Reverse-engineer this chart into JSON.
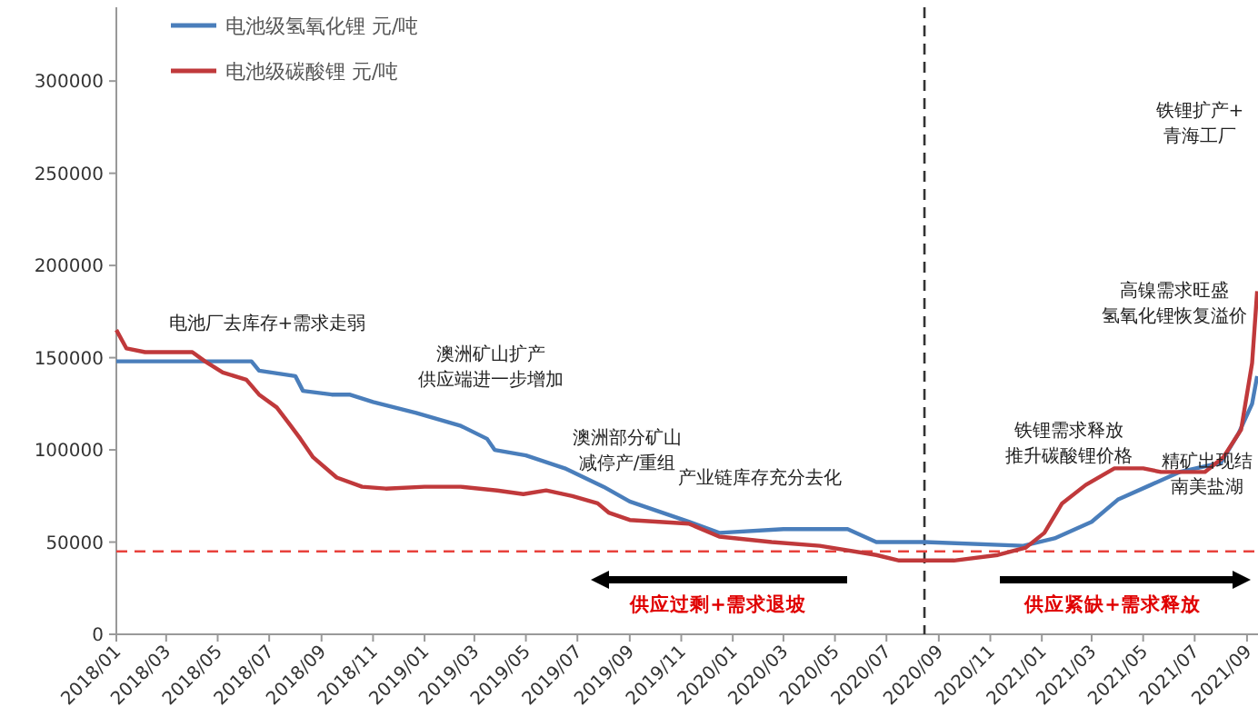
{
  "chart_data": {
    "type": "line",
    "legend": "top left",
    "xlim": [
      "2018-01-01",
      "2021-09-14"
    ],
    "ylim": [
      0,
      340000
    ],
    "xticks": [
      {
        "value": "2018-01-01",
        "label": "2018/01"
      },
      {
        "value": "2018-03-01",
        "label": "2018/03"
      },
      {
        "value": "2018-05-01",
        "label": "2018/05"
      },
      {
        "value": "2018-07-01",
        "label": "2018/07"
      },
      {
        "value": "2018-09-01",
        "label": "2018/09"
      },
      {
        "value": "2018-11-01",
        "label": "2018/11"
      },
      {
        "value": "2019-01-01",
        "label": "2019/01"
      },
      {
        "value": "2019-03-01",
        "label": "2019/03"
      },
      {
        "value": "2019-05-01",
        "label": "2019/05"
      },
      {
        "value": "2019-07-01",
        "label": "2019/07"
      },
      {
        "value": "2019-09-01",
        "label": "2019/09"
      },
      {
        "value": "2019-11-01",
        "label": "2019/11"
      },
      {
        "value": "2020-01-01",
        "label": "2020/01"
      },
      {
        "value": "2020-03-01",
        "label": "2020/03"
      },
      {
        "value": "2020-05-01",
        "label": "2020/05"
      },
      {
        "value": "2020-07-01",
        "label": "2020/07"
      },
      {
        "value": "2020-09-01",
        "label": "2020/09"
      },
      {
        "value": "2020-11-01",
        "label": "2020/11"
      },
      {
        "value": "2021-01-01",
        "label": "2021/01"
      },
      {
        "value": "2021-03-01",
        "label": "2021/03"
      },
      {
        "value": "2021-05-01",
        "label": "2021/05"
      },
      {
        "value": "2021-07-01",
        "label": "2021/07"
      },
      {
        "value": "2021-09-01",
        "label": "2021/09"
      }
    ],
    "yticks": [
      0,
      50000,
      100000,
      150000,
      200000,
      250000,
      300000
    ],
    "series": [
      {
        "name": "电池级氢氧化锂 元/吨",
        "color": "#4a7ebb",
        "x": [
          "2018-01-01",
          "2018-06-10",
          "2018-06-19",
          "2018-08-01",
          "2018-08-10",
          "2018-09-13",
          "2018-10-04",
          "2018-11-01",
          "2018-12-22",
          "2019-02-13",
          "2019-03-16",
          "2019-03-25",
          "2019-05-01",
          "2019-06-16",
          "2019-08-01",
          "2019-09-01",
          "2019-11-10",
          "2019-12-16",
          "2020-03-01",
          "2020-05-16",
          "2020-06-19",
          "2020-08-16",
          "2020-12-10",
          "2021-01-16",
          "2021-03-01",
          "2021-04-01",
          "2021-05-10",
          "2021-06-13",
          "2021-08-01",
          "2021-08-22",
          "2021-09-07",
          "2021-09-13"
        ],
        "values": [
          148000,
          148000,
          143000,
          140000,
          132000,
          130000,
          130000,
          126000,
          120000,
          113000,
          106000,
          100000,
          97000,
          90000,
          80000,
          72000,
          61000,
          55000,
          57000,
          57000,
          50000,
          50000,
          48000,
          52000,
          61000,
          73000,
          81000,
          88000,
          93000,
          109000,
          125000,
          140000
        ]
      },
      {
        "name": "电池级碳酸锂 元/吨",
        "color": "#c0393b",
        "x": [
          "2018-01-01",
          "2018-01-13",
          "2018-02-04",
          "2018-04-01",
          "2018-04-16",
          "2018-05-07",
          "2018-06-04",
          "2018-06-19",
          "2018-07-10",
          "2018-07-25",
          "2018-08-07",
          "2018-08-22",
          "2018-09-19",
          "2018-10-19",
          "2018-11-16",
          "2019-01-01",
          "2019-02-13",
          "2019-03-28",
          "2019-04-28",
          "2019-05-25",
          "2019-06-25",
          "2019-07-25",
          "2019-08-07",
          "2019-09-01",
          "2019-11-10",
          "2019-12-16",
          "2020-02-16",
          "2020-04-13",
          "2020-06-19",
          "2020-07-16",
          "2020-09-19",
          "2020-11-10",
          "2020-12-13",
          "2021-01-04",
          "2021-01-25",
          "2021-02-22",
          "2021-03-28",
          "2021-05-01",
          "2021-05-22",
          "2021-07-13",
          "2021-08-04",
          "2021-08-25",
          "2021-09-07",
          "2021-09-13"
        ],
        "values": [
          165000,
          155000,
          153000,
          153000,
          148000,
          142000,
          138000,
          130000,
          123000,
          114000,
          106000,
          96000,
          85000,
          80000,
          79000,
          80000,
          80000,
          78000,
          76000,
          78000,
          75000,
          71000,
          66000,
          62000,
          60000,
          53000,
          50000,
          48000,
          43000,
          40000,
          40000,
          43000,
          47000,
          55000,
          71000,
          81000,
          90000,
          90000,
          88000,
          88000,
          96000,
          111000,
          147000,
          186000
        ]
      }
    ],
    "ref_lines": [
      {
        "axis": "y",
        "value": 45000,
        "color": "#e8413c",
        "line_style": "dashed"
      },
      {
        "axis": "x",
        "value": "2020-08-15",
        "color": "#333333",
        "line_style": "dashed"
      }
    ],
    "annotations": [
      "电池厂去库存+需求走弱",
      "澳洲矿山扩产供应端进一步增加",
      "澳洲部分矿山减停产/重组",
      "产业链库存充分去化",
      "铁锂需求释放推升碳酸锂价格",
      "高镍需求旺盛氢氧化锂恢复溢价",
      "铁锂扩产+青海工厂",
      "精矿出现结南美盐湖",
      "供应过剩+需求退坡",
      "供应紧缺+需求释放"
    ]
  }
}
